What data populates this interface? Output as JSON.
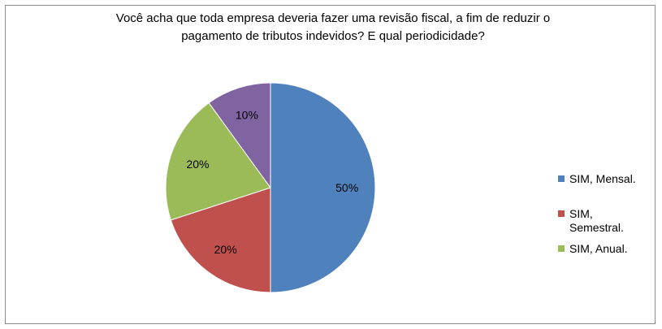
{
  "chart_data": {
    "type": "pie",
    "title_lines": [
      "Você acha que toda empresa deveria fazer uma revisão fiscal, a fim de reduzir o",
      "pagamento de tributos indevidos? E qual periodicidade?"
    ],
    "slices": [
      {
        "label": "SIM, Mensal.",
        "value": 50,
        "data_label": "50%",
        "color": "#4F81BD"
      },
      {
        "label": "SIM, Semestral.",
        "value": 20,
        "data_label": "20%",
        "color": "#C0504D"
      },
      {
        "label": "SIM, Anual.",
        "value": 20,
        "data_label": "20%",
        "color": "#9BBB59"
      },
      {
        "label": "",
        "value": 10,
        "data_label": "10%",
        "color": "#8064A2"
      }
    ],
    "legend": {
      "placement": "right",
      "entries": [
        {
          "label_lines": [
            "SIM, Mensal."
          ],
          "color": "#4F81BD"
        },
        {
          "label_lines": [
            "SIM,",
            "Semestral."
          ],
          "color": "#C0504D"
        },
        {
          "label_lines": [
            "SIM, Anual."
          ],
          "color": "#9BBB59"
        }
      ]
    }
  }
}
